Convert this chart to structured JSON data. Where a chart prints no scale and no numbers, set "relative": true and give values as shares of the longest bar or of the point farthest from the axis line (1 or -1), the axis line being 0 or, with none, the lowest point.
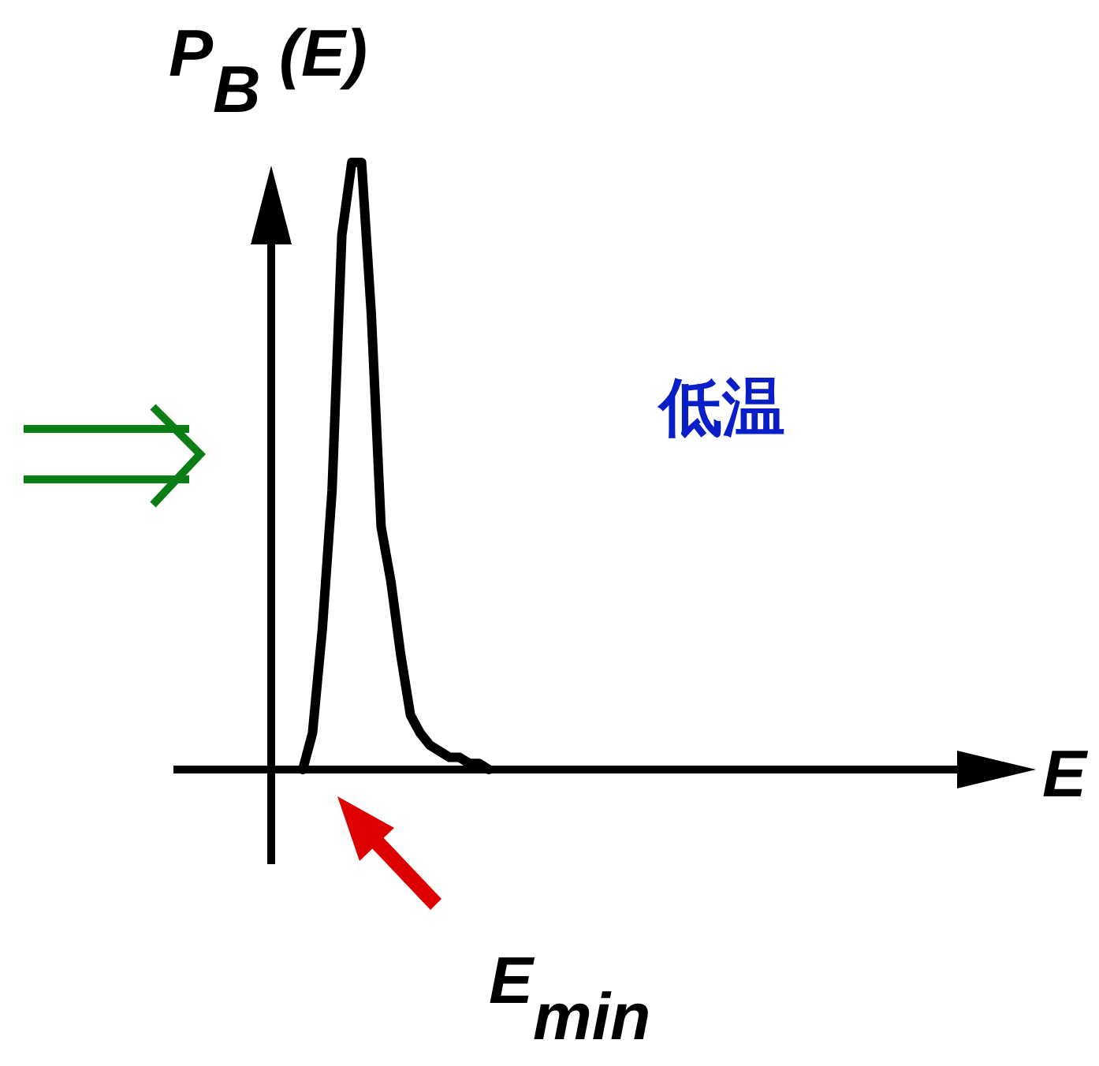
{
  "chart_data": {
    "type": "line",
    "relative": true,
    "ylabel": "P$_{B}$ (E)",
    "categories": [
      null,
      null,
      null,
      null,
      null,
      null,
      null,
      null,
      null,
      null,
      null,
      null,
      null,
      null,
      null,
      null,
      null,
      null,
      null,
      null
    ],
    "series": [
      {
        "color": "#000000",
        "values": [
          0,
          0.06,
          0.23,
          0.46,
          0.88,
          1.0,
          1.0,
          0.75,
          0.4,
          0.31,
          0.19,
          0.09,
          0.06,
          0.04,
          0.03,
          0.02,
          0.02,
          0.01,
          0.01,
          0
        ]
      }
    ],
    "annotations": [
      "低温",
      "E$_{min}$",
      "E"
    ]
  }
}
